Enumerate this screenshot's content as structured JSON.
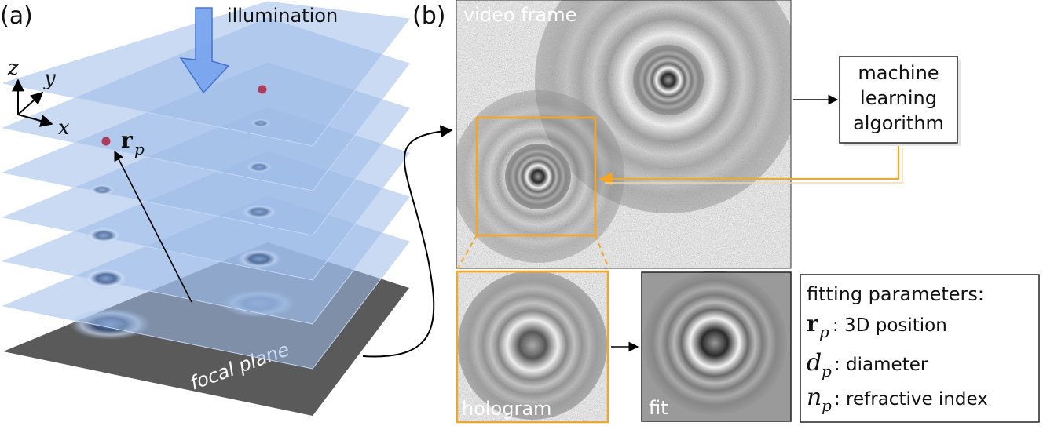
{
  "panel_a": {
    "label": "(a)",
    "illumination_label": "illumination",
    "axes": {
      "z": "z",
      "y": "y",
      "x": "x"
    },
    "particle_label_main": "r",
    "particle_label_sub": "p",
    "focal_plane_label": "focal plane"
  },
  "panel_b": {
    "label": "(b)",
    "video_frame_label": "video frame",
    "ml_box": {
      "line1": "machine",
      "line2": "learning",
      "line3": "algorithm"
    },
    "hologram_label": "hologram",
    "fit_label": "fit",
    "fitting": {
      "title": "fitting parameters:",
      "items": [
        {
          "symbol": "r",
          "sub": "p",
          "text": ": 3D position"
        },
        {
          "symbol": "d",
          "sub": "p",
          "text": ": diameter"
        },
        {
          "symbol": "n",
          "sub": "p",
          "text": ": refractive index"
        }
      ]
    }
  },
  "colors": {
    "plane_blue": "#9dbbe8",
    "arrow_blue": "#7aa6f0",
    "orange": "#f5a623",
    "particle": "#b03a5a",
    "focal_plane": "#555555"
  }
}
